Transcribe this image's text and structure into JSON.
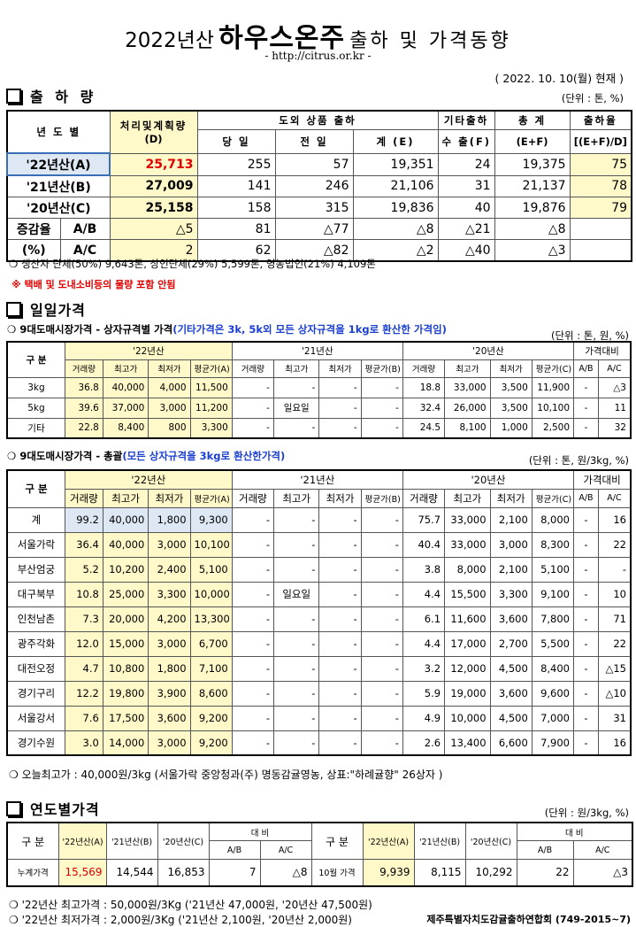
{
  "header": {
    "title_year": "2022년산",
    "title_main": "하우스온주",
    "title_tail": "출하 및 가격동향",
    "url": "- http://citrus.or.kr -",
    "as_of": "( 2022. 10. 10(월) 현재 )"
  },
  "shipment": {
    "section_title": "출 하 량",
    "unit": "(단위 : 톤, %)",
    "headers": {
      "year": "년 도 별",
      "plan": "처리및계획량",
      "plan_sub": "(D)",
      "domestic": "도외 상품 출하",
      "today": "당 일",
      "yesterday": "전 일",
      "subtotal": "계 (E)",
      "other": "기타출하",
      "other_sub": "수 출(F)",
      "total": "총  계",
      "total_sub": "(E+F)",
      "rate": "출하율",
      "rate_sub": "[(E+F)/D]"
    },
    "rows": [
      {
        "label": "'22년산(A)",
        "plan": "25,713",
        "today": "255",
        "yesterday": "57",
        "subtotal": "19,351",
        "other": "24",
        "total": "19,375",
        "rate": "75"
      },
      {
        "label": "'21년산(B)",
        "plan": "27,009",
        "today": "141",
        "yesterday": "246",
        "subtotal": "21,106",
        "other": "31",
        "total": "21,137",
        "rate": "78"
      },
      {
        "label": "'20년산(C)",
        "plan": "25,158",
        "today": "158",
        "yesterday": "315",
        "subtotal": "19,836",
        "other": "40",
        "total": "19,876",
        "rate": "79"
      }
    ],
    "change_label": "증감율",
    "pct_label": "(%)",
    "change_rows": [
      {
        "k": "A/B",
        "plan": "△5",
        "today": "81",
        "yesterday": "△77",
        "subtotal": "△8",
        "other": "△21",
        "total": "△8",
        "rate": ""
      },
      {
        "k": "A/C",
        "plan": "2",
        "today": "62",
        "yesterday": "△82",
        "subtotal": "△2",
        "other": "△40",
        "total": "△3",
        "rate": ""
      }
    ],
    "producers_note": "❍ 생산자 단체(50%)  9,643톤,    상인단체(29%)  5,599톤,    영농법인(21%)    4,109톤",
    "red_note": "※ 택배 및 도내소비등의 물량 포함 안됨"
  },
  "daily": {
    "section_title": "일일가격",
    "spec_title": "❍ 9대도매시장가격 - 상자규격별 가격",
    "spec_note": "(기타가격은 3k, 5k외 모든 상자규격을 1kg로 환산한 가격임)",
    "unit1": "(단위 : 톤, 원, %)",
    "group_label": "구  분",
    "years": [
      "'22년산",
      "'21년산",
      "'20년산"
    ],
    "compare": "가격대비",
    "cols": [
      "거래량",
      "최고가",
      "최저가"
    ],
    "avg_a": "평균가(A)",
    "avg_b": "평균가(B)",
    "avg_c": "평균가(C)",
    "ab": "A/B",
    "ac": "A/C",
    "spec_rows": [
      {
        "label": "3kg",
        "v": [
          "36.8",
          "40,000",
          "4,000",
          "11,500",
          "-",
          "-",
          "-",
          "-",
          "18.8",
          "33,000",
          "3,500",
          "11,900",
          "-",
          "△3"
        ]
      },
      {
        "label": "5kg",
        "v": [
          "39.6",
          "37,000",
          "3,000",
          "11,200",
          "-",
          "일요일",
          "-",
          "-",
          "32.4",
          "26,000",
          "3,500",
          "10,100",
          "-",
          "11"
        ]
      },
      {
        "label": "기타",
        "v": [
          "22.8",
          "8,400",
          "800",
          "3,300",
          "-",
          "-",
          "-",
          "-",
          "24.5",
          "8,100",
          "1,000",
          "2,500",
          "-",
          "32"
        ]
      }
    ],
    "gen_title": "❍ 9대도매시장가격 - 총괄",
    "gen_note": "(모든 상자규격을 3kg로 환산한가격)",
    "unit2": "(단위 : 톤, 원/3kg, %)",
    "gen_rows": [
      {
        "label": "계",
        "v": [
          "99.2",
          "40,000",
          "1,800",
          "9,300",
          "-",
          "-",
          "-",
          "-",
          "75.7",
          "33,000",
          "2,100",
          "8,000",
          "-",
          "16"
        ]
      },
      {
        "label": "서울가락",
        "v": [
          "36.4",
          "40,000",
          "3,000",
          "10,100",
          "-",
          "-",
          "-",
          "-",
          "40.4",
          "33,000",
          "3,000",
          "8,300",
          "-",
          "22"
        ]
      },
      {
        "label": "부산엄궁",
        "v": [
          "5.2",
          "10,200",
          "2,400",
          "5,100",
          "-",
          "-",
          "-",
          "-",
          "3.8",
          "8,000",
          "2,100",
          "5,100",
          "-",
          "-"
        ]
      },
      {
        "label": "대구북부",
        "v": [
          "10.8",
          "25,000",
          "3,300",
          "10,000",
          "-",
          "일요일",
          "-",
          "-",
          "4.4",
          "15,500",
          "3,300",
          "9,100",
          "-",
          "10"
        ]
      },
      {
        "label": "인천남촌",
        "v": [
          "7.3",
          "20,000",
          "4,200",
          "13,300",
          "-",
          "-",
          "-",
          "-",
          "6.1",
          "11,600",
          "3,600",
          "7,800",
          "-",
          "71"
        ]
      },
      {
        "label": "광주각화",
        "v": [
          "12.0",
          "15,000",
          "3,000",
          "6,700",
          "-",
          "-",
          "-",
          "-",
          "4.4",
          "17,000",
          "2,700",
          "5,500",
          "-",
          "22"
        ]
      },
      {
        "label": "대전오정",
        "v": [
          "4.7",
          "10,800",
          "1,800",
          "7,100",
          "-",
          "-",
          "-",
          "-",
          "3.2",
          "12,000",
          "4,500",
          "8,400",
          "-",
          "△15"
        ]
      },
      {
        "label": "경기구리",
        "v": [
          "12.2",
          "19,800",
          "3,900",
          "8,600",
          "-",
          "-",
          "-",
          "-",
          "5.9",
          "19,000",
          "3,600",
          "9,600",
          "-",
          "△10"
        ]
      },
      {
        "label": "서울강서",
        "v": [
          "7.6",
          "17,500",
          "3,600",
          "9,200",
          "-",
          "-",
          "-",
          "-",
          "4.9",
          "10,000",
          "4,500",
          "7,000",
          "-",
          "31"
        ]
      },
      {
        "label": "경기수원",
        "v": [
          "3.0",
          "14,000",
          "3,000",
          "9,200",
          "-",
          "-",
          "-",
          "-",
          "2.6",
          "13,400",
          "6,600",
          "7,900",
          "-",
          "16"
        ]
      }
    ],
    "today_high": "❍ 오늘최고가 : 40,000원/3kg (서울가락  중앙청과(주)  명동감귤영농,  상표:\"하례귤향\"  26상자 )"
  },
  "yearly": {
    "section_title": "연도별가격",
    "unit": "(단위 : 원/3kg, %)",
    "group_label": "구  분",
    "c22": "'22년산(A)",
    "c21": "'21년산(B)",
    "c20": "'20년산(C)",
    "compare": "대   비",
    "ab": "A/B",
    "ac": "A/C",
    "cumulative": {
      "label": "누계가격",
      "a": "15,569",
      "b": "14,544",
      "c": "16,853",
      "ab": "7",
      "ac": "△8"
    },
    "october": {
      "label": "10월 가격",
      "a": "9,939",
      "b": "8,115",
      "c": "10,292",
      "ab": "22",
      "ac": "△3"
    },
    "note_high": "❍ '22년산 최고가격 : 50,000원/3Kg ('21년산 47,000원, '20년산 47,500원)",
    "note_low": "❍ '22년산 최저가격 :   2,000원/3Kg ('21년산   2,100원, '20년산  2,000원)",
    "org": "제주특별자치도감귤출하연합회 (749-2015~7)"
  }
}
